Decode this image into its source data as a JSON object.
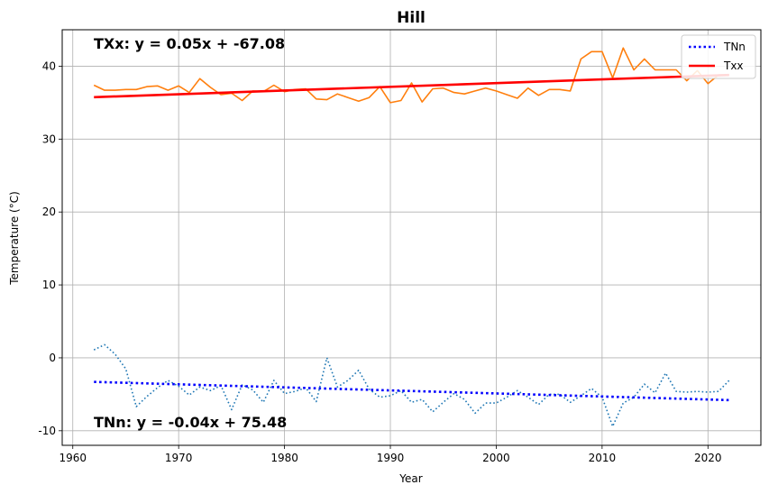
{
  "chart_data": {
    "type": "line",
    "title": "Hill",
    "xlabel": "Year",
    "ylabel": "Temperature (°C)",
    "xlim": [
      1959.0,
      2025.0
    ],
    "ylim": [
      -12.0,
      45.0
    ],
    "xticks": [
      1960,
      1970,
      1980,
      1990,
      2000,
      2010,
      2020
    ],
    "yticks": [
      -10,
      0,
      10,
      20,
      30,
      40
    ],
    "grid": true,
    "legend_position": "top-right",
    "legend": [
      {
        "label": "TNn",
        "color": "#0000ff",
        "style": "dotted"
      },
      {
        "label": "Txx",
        "color": "#ff0000",
        "style": "solid"
      }
    ],
    "annotations": {
      "txx_equation": "TXx: y = 0.05x + -67.08",
      "tnn_equation": "TNn: y = -0.04x + 75.48"
    },
    "years": [
      1962,
      1963,
      1964,
      1965,
      1966,
      1967,
      1968,
      1969,
      1970,
      1971,
      1972,
      1973,
      1974,
      1975,
      1976,
      1977,
      1978,
      1979,
      1980,
      1981,
      1982,
      1983,
      1984,
      1985,
      1986,
      1987,
      1988,
      1989,
      1990,
      1991,
      1992,
      1993,
      1994,
      1995,
      1996,
      1997,
      1998,
      1999,
      2000,
      2001,
      2002,
      2003,
      2004,
      2005,
      2006,
      2007,
      2008,
      2009,
      2010,
      2011,
      2012,
      2013,
      2014,
      2015,
      2016,
      2017,
      2018,
      2019,
      2020,
      2021,
      2022
    ],
    "series": [
      {
        "key": "txx_data",
        "color": "#ff7f0e",
        "style": "solid",
        "values": [
          37.4,
          36.7,
          36.7,
          36.8,
          36.8,
          37.2,
          37.3,
          36.7,
          37.3,
          36.4,
          38.3,
          37.1,
          36.1,
          36.3,
          35.3,
          36.6,
          36.5,
          37.4,
          36.5,
          36.8,
          36.9,
          35.5,
          35.4,
          36.2,
          35.7,
          35.2,
          35.7,
          37.2,
          35.0,
          35.3,
          37.7,
          35.1,
          36.9,
          37.0,
          36.4,
          36.2,
          36.6,
          37.0,
          36.6,
          36.1,
          35.6,
          37.0,
          36.0,
          36.8,
          36.8,
          36.6,
          41.0,
          42.0,
          42.0,
          38.4,
          42.5,
          39.5,
          41.0,
          39.5,
          39.5,
          39.5,
          38.0,
          39.4,
          37.6,
          38.8,
          38.8
        ]
      },
      {
        "key": "tnn_data",
        "color": "#1f77b4",
        "style": "dotted",
        "values": [
          1.1,
          1.8,
          0.5,
          -1.5,
          -6.7,
          -5.3,
          -4.1,
          -3.1,
          -3.9,
          -5.1,
          -4.0,
          -4.5,
          -3.8,
          -7.1,
          -3.7,
          -4.4,
          -6.1,
          -3.1,
          -4.9,
          -4.6,
          -4.1,
          -6.0,
          0.0,
          -4.0,
          -3.1,
          -1.7,
          -4.3,
          -5.4,
          -5.2,
          -4.5,
          -6.1,
          -5.7,
          -7.4,
          -6.1,
          -4.9,
          -5.7,
          -7.6,
          -6.2,
          -6.2,
          -5.4,
          -4.5,
          -5.4,
          -6.4,
          -5.0,
          -5.0,
          -6.1,
          -5.2,
          -4.2,
          -5.4,
          -9.4,
          -6.2,
          -5.4,
          -3.6,
          -4.8,
          -2.1,
          -4.6,
          -4.7,
          -4.6,
          -4.7,
          -4.6,
          -3.1
        ]
      }
    ],
    "trend_lines": [
      {
        "key": "txx_trend",
        "name": "Txx",
        "color": "#ff0000",
        "style": "solid",
        "x": [
          1962,
          2022
        ],
        "y": [
          35.75,
          38.8
        ]
      },
      {
        "key": "tnn_trend",
        "name": "TNn",
        "color": "#0000ff",
        "style": "dotted",
        "x": [
          1962,
          2022
        ],
        "y": [
          -3.3,
          -5.8
        ]
      }
    ]
  }
}
